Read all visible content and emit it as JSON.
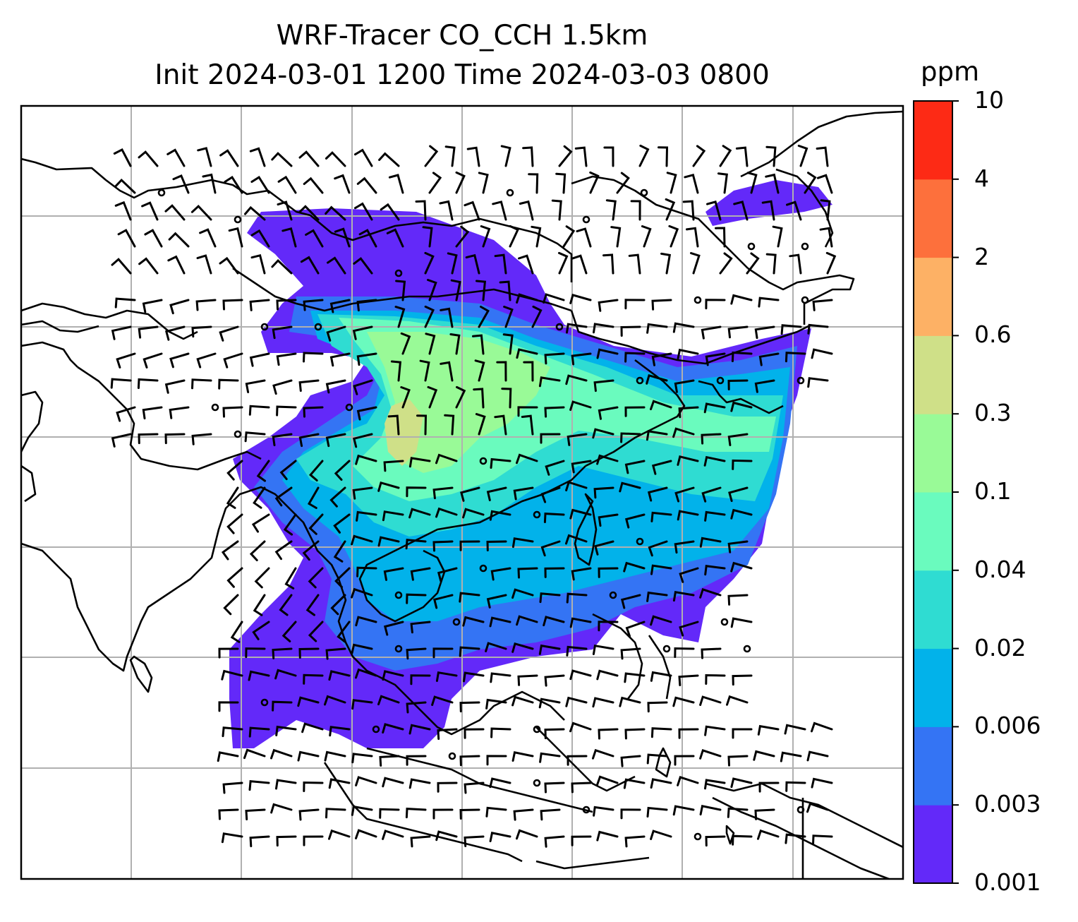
{
  "title": {
    "line1": "WRF-Tracer CO_CCH 1.5km",
    "line2": "Init 2024-03-01 1200 Time 2024-03-03 0800"
  },
  "colorbar": {
    "unit": "ppm",
    "ticks": [
      "0.001",
      "0.003",
      "0.006",
      "0.02",
      "0.04",
      "0.1",
      "0.3",
      "0.6",
      "2",
      "4",
      "10"
    ],
    "colors": [
      "#6329f9",
      "#3474f4",
      "#02b2ea",
      "#2fdcd2",
      "#6afbbe",
      "#99fa97",
      "#cfe088",
      "#fdb165",
      "#fd703c",
      "#fd2a15"
    ]
  },
  "map": {
    "gridline_color": "#b0b0b0",
    "coastline_color": "#000000",
    "wind_barbs": "black",
    "calm_marker": "circle"
  }
}
